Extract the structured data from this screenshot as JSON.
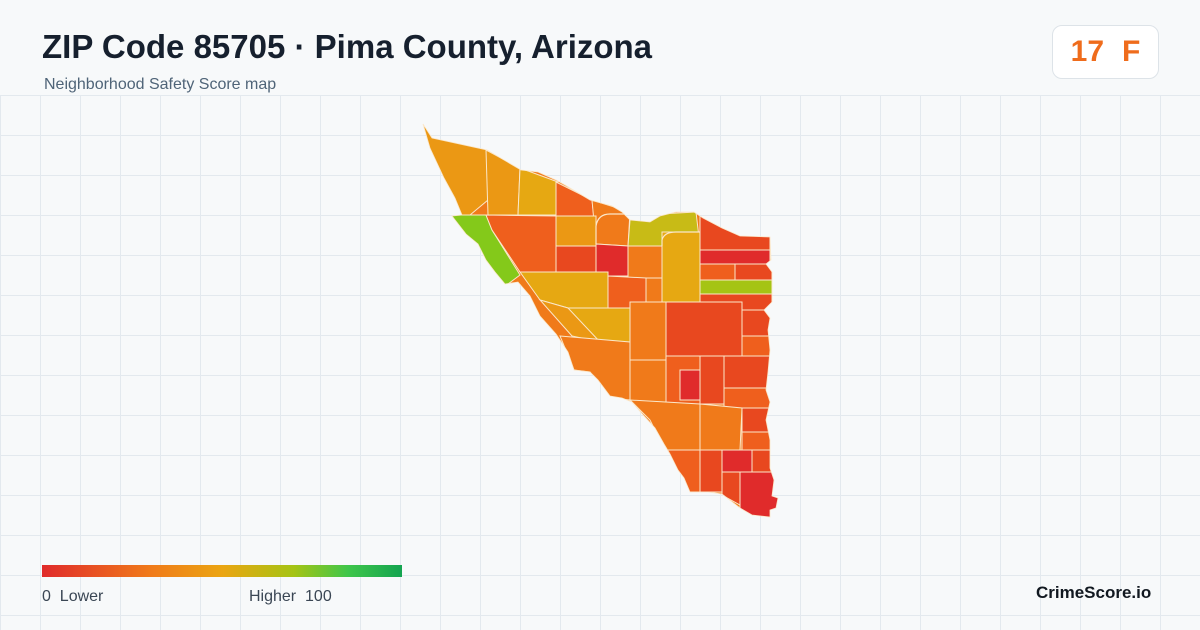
{
  "header": {
    "title": "ZIP Code 85705 · Pima County, Arizona",
    "subtitle": "Neighborhood Safety Score map"
  },
  "score": {
    "value": "17",
    "grade": "F",
    "color": "#ef6c1c"
  },
  "map": {
    "grid_color": "#e3e9ee",
    "boundary_color": "#fbe7c9",
    "palette": {
      "lowest": "#e02b2b",
      "low": "#e8481f",
      "low_mid": "#ef5f1d",
      "mid": "#f07a1a",
      "mid_high": "#eb9814",
      "warm_yellow": "#e6a812",
      "olive": "#c8bb16",
      "yellow_green": "#a5c414",
      "green": "#84c91a"
    }
  },
  "legend": {
    "low_label": "0  Lower",
    "high_label": "Higher  100",
    "gradient": [
      "#e02b2b",
      "#f07a1a",
      "#eba512",
      "#a5c414",
      "#3fc64a",
      "#14a450"
    ]
  },
  "brand": {
    "name": "CrimeScore.io"
  }
}
